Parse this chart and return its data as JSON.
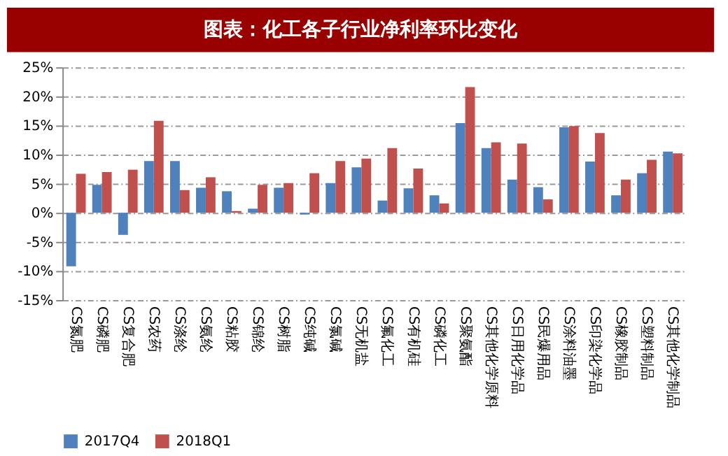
{
  "chart_data": {
    "type": "bar",
    "title": "图表：化工各子行业净利率环比变化",
    "categories": [
      "CS氮肥",
      "CS磷肥",
      "CS复合肥",
      "CS农药",
      "CS涤纶",
      "CS氨纶",
      "CS粘胶",
      "CS锦纶",
      "CS树脂",
      "CS纯碱",
      "CS氯碱",
      "CS无机盐",
      "CS氟化工",
      "CS有机硅",
      "CS磷化工",
      "CS聚氨酯",
      "CS其他化学原料",
      "CS日用化学品",
      "CS民爆用品",
      "CS涂料油墨",
      "CS印染化学品",
      "CS橡胶制品",
      "CS塑料制品",
      "CS其他化学制品"
    ],
    "series": [
      {
        "name": "2017Q4",
        "color": "#4f81bd",
        "values": [
          -9.2,
          4.8,
          -3.8,
          8.9,
          8.9,
          4.3,
          3.7,
          0.7,
          4.3,
          -0.3,
          5.1,
          7.8,
          2.1,
          4.2,
          3.0,
          15.4,
          11.1,
          5.7,
          4.4,
          14.7,
          8.8,
          3.0,
          6.8,
          10.5
        ]
      },
      {
        "name": "2018Q1",
        "color": "#c0504d",
        "values": [
          6.7,
          7.0,
          7.4,
          15.8,
          3.9,
          6.1,
          0.3,
          4.8,
          5.1,
          6.8,
          8.9,
          9.3,
          11.1,
          7.6,
          1.6,
          21.6,
          12.1,
          11.9,
          2.3,
          14.9,
          13.7,
          5.7,
          9.1,
          10.2
        ]
      }
    ],
    "ylim": [
      -15,
      25
    ],
    "yticks": [
      {
        "value": -15,
        "label": "-15%"
      },
      {
        "value": -10,
        "label": "-10%"
      },
      {
        "value": -5,
        "label": "-5%"
      },
      {
        "value": 0,
        "label": "0%"
      },
      {
        "value": 5,
        "label": "5%"
      },
      {
        "value": 10,
        "label": "10%"
      },
      {
        "value": 15,
        "label": "15%"
      },
      {
        "value": 20,
        "label": "20%"
      },
      {
        "value": 25,
        "label": "25%"
      }
    ],
    "grid": "y",
    "legend": "bottom"
  }
}
